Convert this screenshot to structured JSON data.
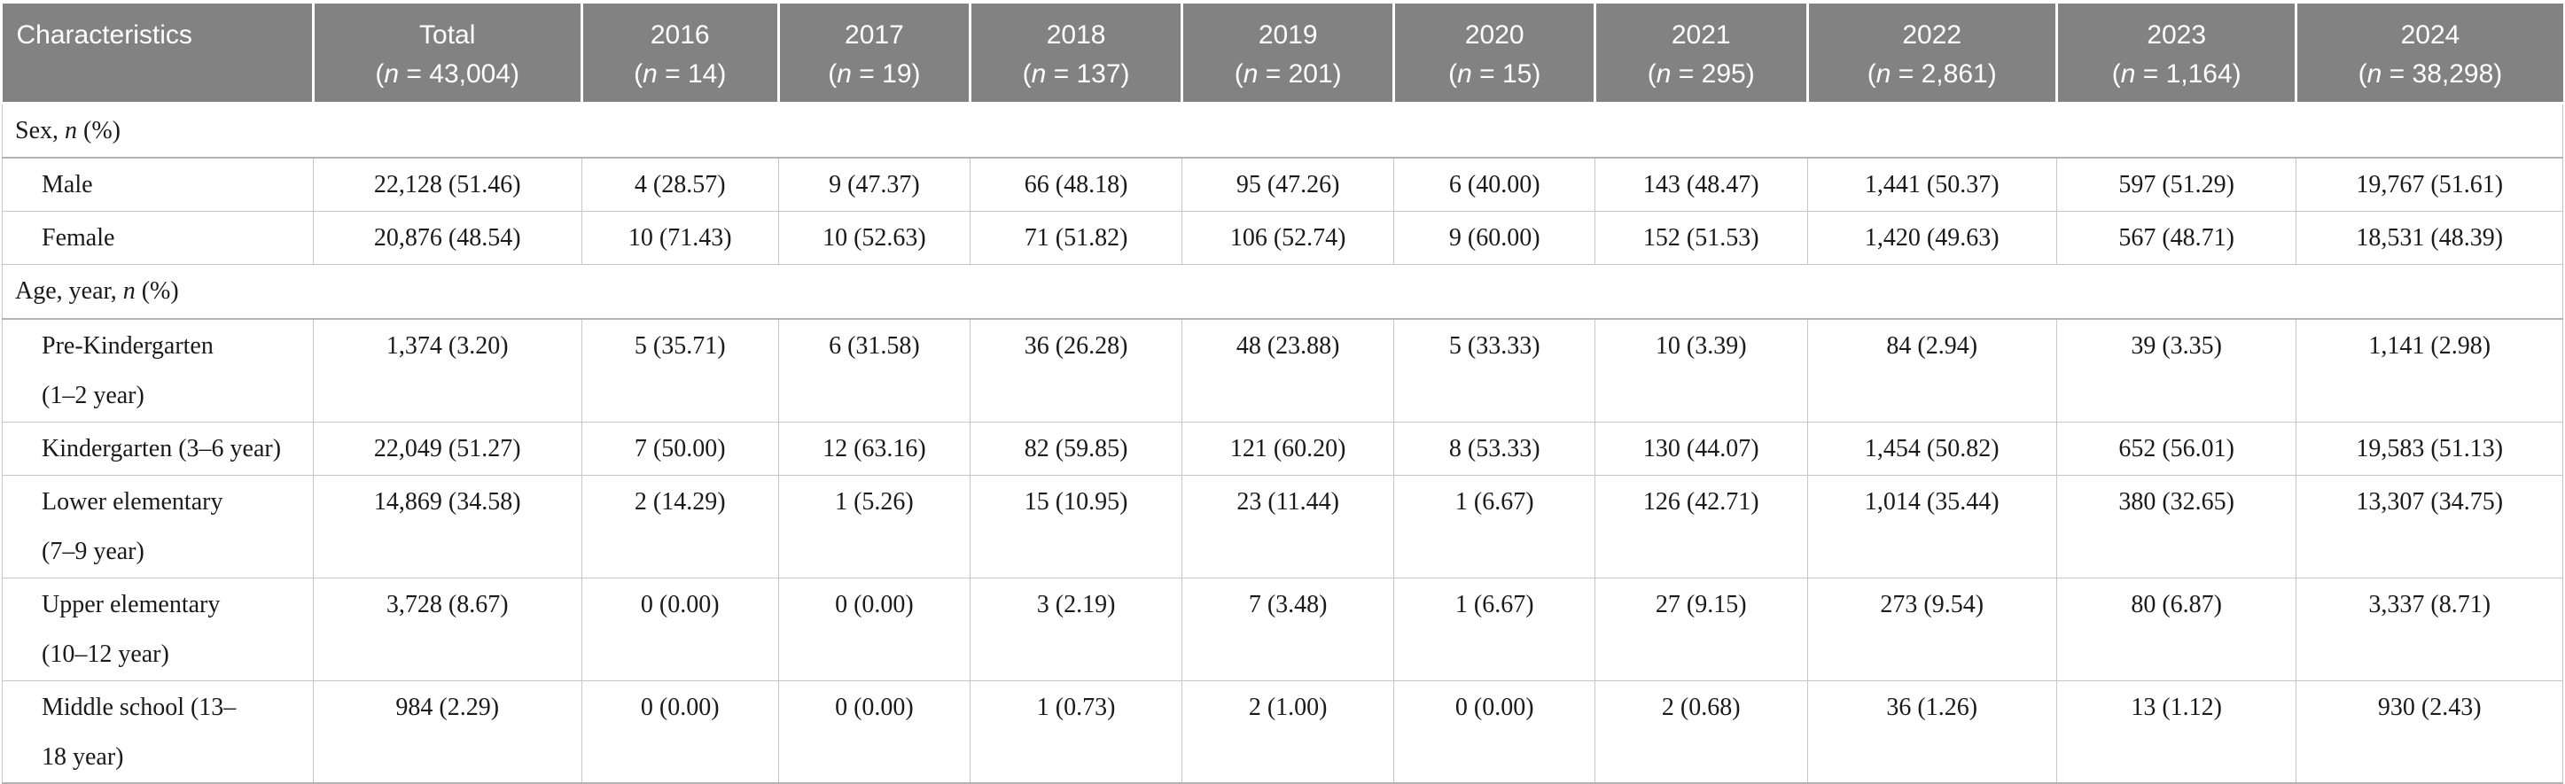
{
  "table": {
    "header": {
      "characteristics_label": "Characteristics",
      "columns": [
        {
          "title": "Total",
          "subtitle": "(n = 43,004)"
        },
        {
          "title": "2016",
          "subtitle": "(n = 14)"
        },
        {
          "title": "2017",
          "subtitle": "(n = 19)"
        },
        {
          "title": "2018",
          "subtitle": "(n = 137)"
        },
        {
          "title": "2019",
          "subtitle": "(n = 201)"
        },
        {
          "title": "2020",
          "subtitle": "(n = 15)"
        },
        {
          "title": "2021",
          "subtitle": "(n = 295)"
        },
        {
          "title": "2022",
          "subtitle": "(n = 2,861)"
        },
        {
          "title": "2023",
          "subtitle": "(n = 1,164)"
        },
        {
          "title": "2024",
          "subtitle": "(n = 38,298)"
        }
      ]
    },
    "sections": [
      {
        "label": "Sex, n (%)",
        "rows": [
          {
            "label_lines": [
              "Male"
            ],
            "values": [
              "22,128 (51.46)",
              "4 (28.57)",
              "9 (47.37)",
              "66 (48.18)",
              "95 (47.26)",
              "6 (40.00)",
              "143 (48.47)",
              "1,441 (50.37)",
              "597 (51.29)",
              "19,767 (51.61)"
            ]
          },
          {
            "label_lines": [
              "Female"
            ],
            "values": [
              "20,876 (48.54)",
              "10 (71.43)",
              "10 (52.63)",
              "71 (51.82)",
              "106 (52.74)",
              "9 (60.00)",
              "152 (51.53)",
              "1,420 (49.63)",
              "567 (48.71)",
              "18,531 (48.39)"
            ]
          }
        ]
      },
      {
        "label": "Age, year, n (%)",
        "rows": [
          {
            "label_lines": [
              "Pre-Kindergarten",
              "(1–2 year)"
            ],
            "values": [
              "1,374 (3.20)",
              "5 (35.71)",
              "6 (31.58)",
              "36 (26.28)",
              "48 (23.88)",
              "5 (33.33)",
              "10 (3.39)",
              "84 (2.94)",
              "39 (3.35)",
              "1,141 (2.98)"
            ]
          },
          {
            "label_lines": [
              "Kindergarten (3–6 year)"
            ],
            "values": [
              "22,049 (51.27)",
              "7 (50.00)",
              "12 (63.16)",
              "82 (59.85)",
              "121 (60.20)",
              "8 (53.33)",
              "130 (44.07)",
              "1,454 (50.82)",
              "652 (56.01)",
              "19,583 (51.13)"
            ]
          },
          {
            "label_lines": [
              "Lower elementary",
              "(7–9 year)"
            ],
            "values": [
              "14,869 (34.58)",
              "2 (14.29)",
              "1 (5.26)",
              "15 (10.95)",
              "23 (11.44)",
              "1 (6.67)",
              "126 (42.71)",
              "1,014 (35.44)",
              "380 (32.65)",
              "13,307 (34.75)"
            ]
          },
          {
            "label_lines": [
              "Upper elementary",
              "(10–12 year)"
            ],
            "values": [
              "3,728 (8.67)",
              "0 (0.00)",
              "0 (0.00)",
              "3 (2.19)",
              "7 (3.48)",
              "1 (6.67)",
              "27 (9.15)",
              "273 (9.54)",
              "80 (6.87)",
              "3,337 (8.71)"
            ]
          },
          {
            "label_lines": [
              "Middle school (13–",
              "18 year)"
            ],
            "values": [
              "984 (2.29)",
              "0 (0.00)",
              "0 (0.00)",
              "1 (0.73)",
              "2 (1.00)",
              "0 (0.00)",
              "2 (0.68)",
              "36 (1.26)",
              "13 (1.12)",
              "930 (2.43)"
            ]
          }
        ]
      }
    ]
  },
  "style": {
    "header_bg": "#828282",
    "header_text": "#ffffff",
    "body_text": "#1a1a1a",
    "border_light": "#c6c6c6",
    "border_strong": "#b3b3b3"
  }
}
